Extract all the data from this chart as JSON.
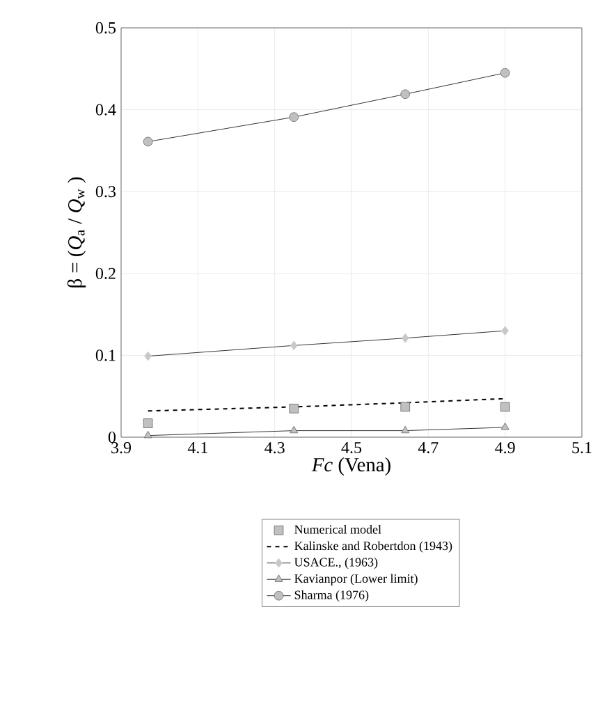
{
  "chart_data": {
    "type": "line",
    "xlabel": "*Fc* (Vena)",
    "ylabel": "β = (*Q*$_{a}$ / *Q*$_{w}$ )",
    "xlim": [
      3.9,
      5.1
    ],
    "ylim": [
      0,
      0.5
    ],
    "xticks": [
      3.9,
      4.1,
      4.3,
      4.5,
      4.7,
      4.9,
      5.1
    ],
    "yticks": [
      0,
      0.1,
      0.2,
      0.3,
      0.4,
      0.5
    ],
    "grid": true,
    "legend": "bottom",
    "x": [
      3.97,
      4.35,
      4.64,
      4.9
    ],
    "series": [
      {
        "name": "Numerical model",
        "type": "scatter",
        "marker": "square",
        "color": "#c0c0c0",
        "values": [
          0.017,
          0.035,
          0.037,
          0.037
        ]
      },
      {
        "name": "Kalinske and Robertdon (1943)",
        "type": "line",
        "marker": "none",
        "line_style": "dashed",
        "color": "#000000",
        "values": [
          0.032,
          0.037,
          0.042,
          0.047
        ]
      },
      {
        "name": "USACE., (1963)",
        "type": "line",
        "marker": "diamond",
        "line_style": "solid",
        "color": "#c8c8c8",
        "values": [
          0.099,
          0.112,
          0.121,
          0.13
        ]
      },
      {
        "name": "Kavianpor (Lower limit)",
        "type": "line",
        "marker": "triangle",
        "line_style": "solid",
        "color": "#c0c0c0",
        "values": [
          0.002,
          0.008,
          0.008,
          0.012
        ]
      },
      {
        "name": "Sharma (1976)",
        "type": "line",
        "marker": "circle",
        "line_style": "solid",
        "color": "#c0c0c0",
        "values": [
          0.361,
          0.391,
          0.419,
          0.445
        ]
      }
    ]
  }
}
